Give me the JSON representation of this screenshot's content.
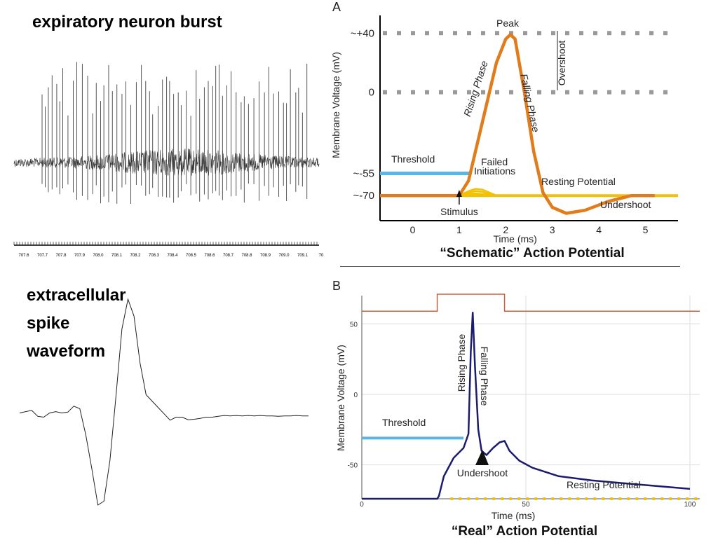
{
  "left_top": {
    "title": "expiratory neuron burst",
    "time_ticks": [
      "707.6",
      "707.7",
      "707.8",
      "707.9",
      "708.0",
      "708.1",
      "708.2",
      "708.3",
      "708.4",
      "708.5",
      "708.6",
      "708.7",
      "708.8",
      "708.9",
      "709.0",
      "709.1",
      "70"
    ]
  },
  "left_bottom": {
    "title_lines": [
      "extracellular",
      "spike",
      "waveform"
    ]
  },
  "chart_data": [
    {
      "type": "line",
      "panel": "A",
      "title": "“Schematic” Action Potential",
      "xlabel": "Time (ms)",
      "ylabel": "Membrane Voltage (mV)",
      "xlim": [
        -0.7,
        5.7
      ],
      "ylim": [
        -87,
        52
      ],
      "x_ticks": [
        "0",
        "1",
        "2",
        "3",
        "4",
        "5"
      ],
      "y_ticks": [
        {
          "label": "~+40",
          "value": 40
        },
        {
          "label": "0",
          "value": 0
        },
        {
          "label": "~-55",
          "value": -55
        },
        {
          "label": "~-70",
          "value": -70
        }
      ],
      "series": [
        {
          "color": "#e07c1c",
          "x": [
            -0.7,
            0.8,
            1.0,
            1.2,
            1.5,
            1.8,
            2.0,
            2.1,
            2.2,
            2.4,
            2.6,
            2.8,
            3.0,
            3.3,
            3.7,
            4.2,
            4.7,
            5.2
          ],
          "y": [
            -70,
            -70,
            -70,
            -60,
            -20,
            20,
            36,
            39,
            36,
            0,
            -40,
            -68,
            -78,
            -82,
            -80,
            -74,
            -70,
            -70
          ]
        },
        {
          "color": "#5bb6e8",
          "x": [
            -0.7,
            1.25
          ],
          "y": [
            -55,
            -55
          ]
        },
        {
          "color": "#f2c200",
          "x": [
            1.0,
            5.7
          ],
          "y": [
            -70,
            -70
          ]
        }
      ],
      "failed_initiations": [
        {
          "x": [
            1.0,
            1.2,
            1.35,
            1.5,
            1.65,
            1.8
          ],
          "y": [
            -70,
            -67,
            -65.5,
            -66,
            -68,
            -70
          ]
        },
        {
          "x": [
            1.0,
            1.2,
            1.35,
            1.5,
            1.65,
            1.8
          ],
          "y": [
            -70,
            -68,
            -67,
            -67.5,
            -69,
            -70
          ]
        },
        {
          "x": [
            1.0,
            1.2,
            1.35,
            1.5,
            1.65,
            1.8
          ],
          "y": [
            -70,
            -69,
            -68.5,
            -69,
            -69.6,
            -70
          ]
        }
      ],
      "reference_lines": [
        {
          "y": 40,
          "style": "dotted"
        },
        {
          "y": 0,
          "style": "dotted"
        }
      ],
      "annotations": {
        "peak": "Peak",
        "overshoot": "Overshoot",
        "rising": "Rising Phase",
        "falling": "Falling Phase",
        "threshold": "Threshold",
        "failed": "Failed",
        "initiations": "Initiations",
        "resting": "Resting Potential",
        "undershoot": "Undershoot",
        "stimulus": "Stimulus"
      },
      "panel_label": "A"
    },
    {
      "type": "line",
      "panel": "B",
      "title": "“Real” Action Potential",
      "xlabel": "Time (ms)",
      "ylabel": "Membrane Voltage (mV)",
      "xlim": [
        0,
        103
      ],
      "ylim": [
        -73,
        70
      ],
      "x_ticks": [
        {
          "label": "0",
          "value": 0
        },
        {
          "label": "50",
          "value": 50
        },
        {
          "label": "100",
          "value": 100
        }
      ],
      "y_ticks": [
        {
          "label": "50",
          "value": 50
        },
        {
          "label": "0",
          "value": 0
        },
        {
          "label": "-50",
          "value": -50
        }
      ],
      "series": [
        {
          "color": "#1c1c6e",
          "x": [
            0,
            23,
            23.5,
            25,
            28,
            31,
            32.5,
            33.2,
            33.8,
            34.5,
            35.5,
            36.5,
            38,
            40,
            42,
            43.5,
            45,
            48,
            52,
            60,
            70,
            80,
            90,
            100
          ],
          "y": [
            -74,
            -74,
            -72,
            -58,
            -45,
            -38,
            -28,
            30,
            58,
            20,
            -25,
            -40,
            -43,
            -38,
            -34,
            -33,
            -40,
            -47,
            -52,
            -58,
            -61,
            -63,
            -65,
            -67
          ]
        },
        {
          "color": "#5bb6e8",
          "x": [
            0,
            31
          ],
          "y": [
            -31,
            -31
          ]
        },
        {
          "color": "#f2c200",
          "x": [
            27,
            103
          ],
          "y": [
            -74,
            -74
          ]
        },
        {
          "color": "#c86040",
          "x": [
            0,
            23,
            23,
            43.5,
            43.5,
            103
          ],
          "y": [
            59,
            59,
            71,
            71,
            59,
            59
          ]
        }
      ],
      "annotations": {
        "rising": "Rising Phase",
        "falling": "Falling Phase",
        "threshold": "Threshold",
        "undershoot": "Undershoot",
        "resting": "Resting Potential"
      },
      "panel_label": "B"
    },
    {
      "type": "line",
      "panel": "spike_waveform",
      "x": [
        0,
        1,
        2,
        3,
        4,
        5,
        6,
        7,
        8,
        9,
        10,
        11,
        12,
        13,
        14,
        15,
        16,
        17,
        18,
        19,
        20,
        21,
        22,
        23,
        24,
        25,
        26,
        27,
        28,
        29,
        30,
        31,
        32,
        33,
        34,
        35,
        36,
        37,
        38,
        39,
        40,
        41,
        42,
        43,
        44,
        45,
        46,
        47,
        48
      ],
      "y": [
        0.12,
        0.15,
        0.18,
        0.04,
        0.02,
        0.12,
        0.15,
        0.12,
        0.14,
        0.28,
        0.22,
        -0.4,
        -1.2,
        -2.05,
        -1.96,
        -1.0,
        0.5,
        2.1,
        2.8,
        2.4,
        1.3,
        0.55,
        0.4,
        0.25,
        0.1,
        -0.05,
        0.02,
        0.02,
        -0.04,
        -0.03,
        -0.01,
        0.02,
        0.02,
        0.04,
        0.06,
        0.05,
        0.06,
        0.05,
        0.06,
        0.05,
        0.06,
        0.05,
        0.05,
        0.04,
        0.05,
        0.05,
        0.06,
        0.05,
        0.05
      ],
      "ylim": [
        -2.2,
        3.0
      ]
    }
  ]
}
